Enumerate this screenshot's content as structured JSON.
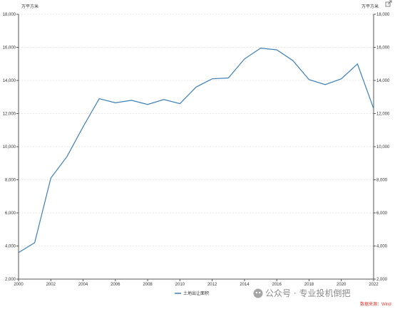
{
  "chart_data": {
    "type": "line",
    "unit_left": "万平方米",
    "unit_right": "万平方米",
    "x": [
      2000,
      2001,
      2002,
      2003,
      2004,
      2005,
      2006,
      2007,
      2008,
      2009,
      2010,
      2011,
      2012,
      2013,
      2014,
      2015,
      2016,
      2017,
      2018,
      2019,
      2020,
      2021,
      2022
    ],
    "x_ticks": [
      "2000",
      "2002",
      "2004",
      "2006",
      "2008",
      "2010",
      "2012",
      "2014",
      "2016",
      "2018",
      "2020",
      "2022"
    ],
    "y_ticks": [
      "2,000",
      "4,000",
      "6,000",
      "8,000",
      "10,000",
      "12,000",
      "14,000",
      "16,000",
      "18,000"
    ],
    "ylim": [
      2000,
      18000
    ],
    "xlim": [
      2000,
      2022
    ],
    "series": [
      {
        "name": "土地出让面积",
        "color": "#3d7fb8",
        "values": [
          3600,
          4200,
          8100,
          9400,
          11200,
          12900,
          12650,
          12800,
          12550,
          12850,
          12600,
          13600,
          14100,
          14150,
          15300,
          15950,
          15850,
          15200,
          14050,
          13750,
          14100,
          15000,
          12300
        ]
      }
    ],
    "grid": true,
    "legend_position": "bottom-center",
    "source_note": "数据来源：Wind",
    "source_color": "#d9342b",
    "watermark": "公众号 · 专业投机倒把",
    "export_icon": "export-icon"
  }
}
